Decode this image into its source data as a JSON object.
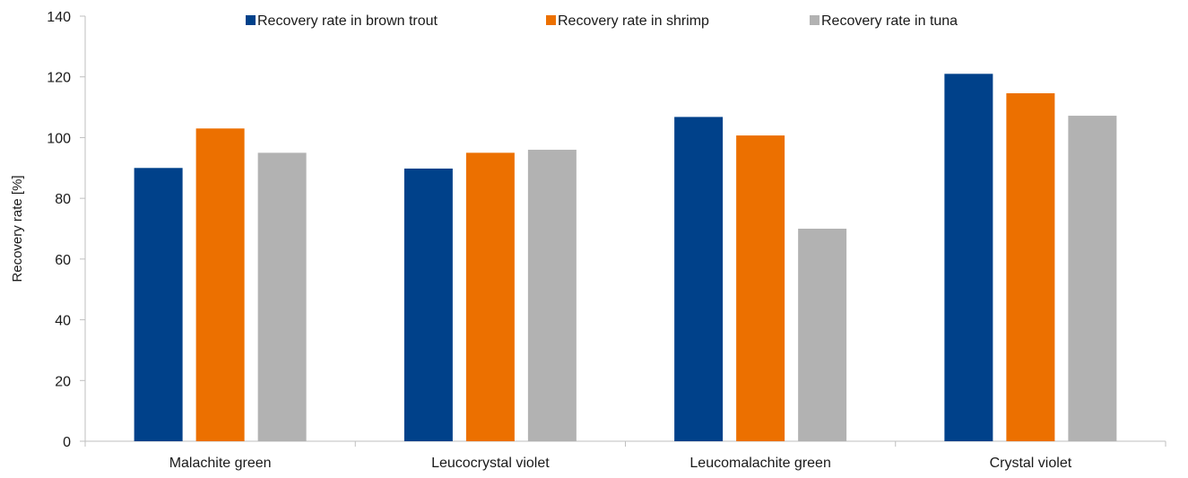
{
  "chart_data": {
    "type": "bar",
    "title": "",
    "xlabel": "",
    "ylabel": "Recovery rate [%]",
    "ylim": [
      0,
      140
    ],
    "yticks": [
      0,
      20,
      40,
      60,
      80,
      100,
      120,
      140
    ],
    "grid": false,
    "legend_position": "top",
    "categories": [
      "Malachite green",
      "Leucocrystal violet",
      "Leucomalachite green",
      "Crystal violet"
    ],
    "series": [
      {
        "name": "Recovery rate in brown trout",
        "color": "#00418a",
        "values": [
          90,
          89.8,
          106.8,
          121
        ]
      },
      {
        "name": "Recovery rate in shrimp",
        "color": "#ec7000",
        "values": [
          103,
          95,
          100.7,
          114.6
        ]
      },
      {
        "name": "Recovery rate in tuna",
        "color": "#b2b2b2",
        "values": [
          95,
          96,
          70,
          107.2
        ]
      }
    ]
  }
}
